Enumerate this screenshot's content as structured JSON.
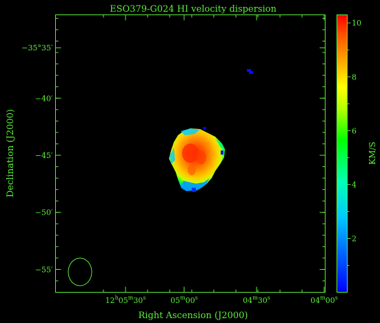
{
  "chart_data": {
    "type": "heatmap",
    "title": "ESO379-G024  HI velocity dispersion",
    "xlabel": "Right Ascension (J2000)",
    "ylabel": "Declination (J2000)",
    "colorbar_label": "KM/S",
    "colorbar_range": [
      0,
      10.3
    ],
    "colorbar_ticks": [
      2,
      4,
      6,
      8,
      10
    ],
    "colormap": [
      "#0000ff",
      "#00b4ff",
      "#00ffb4",
      "#00ff00",
      "#b4ff00",
      "#ffff00",
      "#ffa000",
      "#ff5000",
      "#ff0000"
    ],
    "x_tick_labels": [
      {
        "label": "12h05m30s",
        "main": "12",
        "parts": [
          [
            "h",
            "05"
          ],
          [
            "m",
            "30"
          ],
          [
            "s",
            ""
          ]
        ]
      },
      {
        "label": "05m00s",
        "main": "05",
        "parts": [
          [
            "m",
            "00"
          ],
          [
            "s",
            ""
          ]
        ]
      },
      {
        "label": "04m30s",
        "main": "04",
        "parts": [
          [
            "m",
            "30"
          ],
          [
            "s",
            ""
          ]
        ]
      },
      {
        "label": "04m00s",
        "main": "04",
        "parts": [
          [
            "m",
            "00"
          ],
          [
            "s",
            ""
          ]
        ]
      }
    ],
    "y_range_arcmin": [
      -57,
      -32.7
    ],
    "y_ticks": [
      {
        "value": -35.583,
        "label": "−35°35′"
      },
      {
        "value": -40,
        "label": "−40′"
      },
      {
        "value": -45,
        "label": "−45′"
      },
      {
        "value": -50,
        "label": "−50′"
      },
      {
        "value": -55,
        "label": "−55′"
      }
    ],
    "background": "#000000",
    "axis_color": "#5cf03a",
    "beam": "ellipse, lower-left"
  }
}
